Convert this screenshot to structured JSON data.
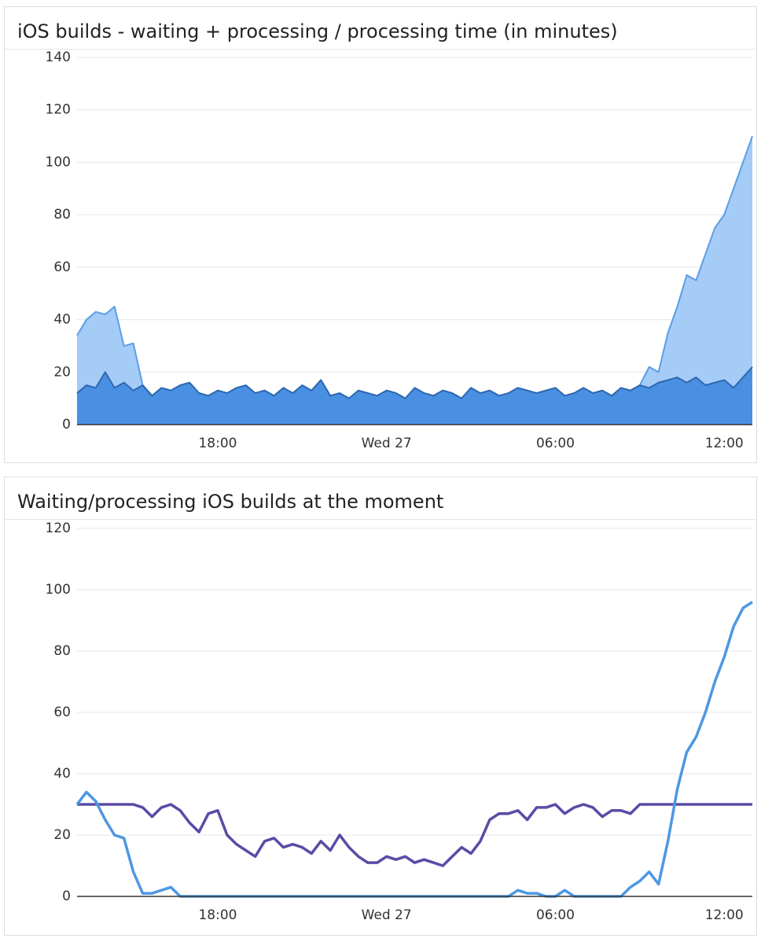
{
  "chart_data": [
    {
      "type": "area",
      "title": "iOS builds - waiting + processing / processing time (in minutes)",
      "categories": [
        null,
        null,
        null,
        null,
        null,
        null,
        null,
        null,
        null,
        null,
        null,
        null,
        null,
        null,
        null,
        "18:00",
        null,
        null,
        null,
        null,
        null,
        null,
        null,
        null,
        null,
        null,
        null,
        null,
        null,
        null,
        null,
        null,
        null,
        "Wed 27",
        null,
        null,
        null,
        null,
        null,
        null,
        null,
        null,
        null,
        null,
        null,
        null,
        null,
        null,
        null,
        null,
        null,
        "06:00",
        null,
        null,
        null,
        null,
        null,
        null,
        null,
        null,
        null,
        null,
        null,
        null,
        null,
        null,
        null,
        null,
        null,
        "12:00",
        null,
        null,
        null
      ],
      "ylim": [
        0,
        140
      ],
      "yticks": [
        0,
        20,
        40,
        60,
        80,
        100,
        120,
        140
      ],
      "grid": true,
      "series": [
        {
          "color": "#5b9ee6",
          "fill": "#a5cbf7",
          "values": [
            34,
            40,
            43,
            42,
            45,
            30,
            31,
            15,
            11,
            14,
            13,
            15,
            16,
            12,
            11,
            13,
            12,
            14,
            15,
            12,
            13,
            11,
            14,
            12,
            15,
            13,
            17,
            11,
            12,
            10,
            13,
            12,
            11,
            13,
            12,
            10,
            14,
            12,
            11,
            13,
            12,
            10,
            14,
            12,
            13,
            11,
            12,
            14,
            13,
            12,
            13,
            14,
            11,
            12,
            14,
            12,
            13,
            11,
            14,
            13,
            15,
            22,
            20,
            35,
            45,
            57,
            55,
            65,
            75,
            80,
            90,
            100,
            110
          ]
        },
        {
          "color": "#2d67b0",
          "fill": "#4a90e2",
          "values": [
            12,
            15,
            14,
            20,
            14,
            16,
            13,
            15,
            11,
            14,
            13,
            15,
            16,
            12,
            11,
            13,
            12,
            14,
            15,
            12,
            13,
            11,
            14,
            12,
            15,
            13,
            17,
            11,
            12,
            10,
            13,
            12,
            11,
            13,
            12,
            10,
            14,
            12,
            11,
            13,
            12,
            10,
            14,
            12,
            13,
            11,
            12,
            14,
            13,
            12,
            13,
            14,
            11,
            12,
            14,
            12,
            13,
            11,
            14,
            13,
            15,
            14,
            16,
            17,
            18,
            16,
            18,
            15,
            16,
            17,
            14,
            18,
            22
          ]
        }
      ]
    },
    {
      "type": "line",
      "title": "Waiting/processing iOS builds at the moment",
      "categories": [
        null,
        null,
        null,
        null,
        null,
        null,
        null,
        null,
        null,
        null,
        null,
        null,
        null,
        null,
        null,
        "18:00",
        null,
        null,
        null,
        null,
        null,
        null,
        null,
        null,
        null,
        null,
        null,
        null,
        null,
        null,
        null,
        null,
        null,
        "Wed 27",
        null,
        null,
        null,
        null,
        null,
        null,
        null,
        null,
        null,
        null,
        null,
        null,
        null,
        null,
        null,
        null,
        null,
        "06:00",
        null,
        null,
        null,
        null,
        null,
        null,
        null,
        null,
        null,
        null,
        null,
        null,
        null,
        null,
        null,
        null,
        null,
        "12:00",
        null,
        null,
        null
      ],
      "ylim": [
        0,
        120
      ],
      "yticks": [
        0,
        20,
        40,
        60,
        80,
        100,
        120
      ],
      "grid": true,
      "series": [
        {
          "color": "#5a4ba6",
          "values": [
            30,
            30,
            30,
            30,
            30,
            30,
            30,
            29,
            26,
            29,
            30,
            28,
            24,
            21,
            27,
            28,
            20,
            17,
            15,
            13,
            18,
            19,
            16,
            17,
            16,
            14,
            18,
            15,
            20,
            16,
            13,
            11,
            11,
            13,
            12,
            13,
            11,
            12,
            11,
            10,
            13,
            16,
            14,
            18,
            25,
            27,
            27,
            28,
            25,
            29,
            29,
            30,
            27,
            29,
            30,
            29,
            26,
            28,
            28,
            27,
            30,
            30,
            30,
            30,
            30,
            30,
            30,
            30,
            30,
            30,
            30,
            30,
            30
          ]
        },
        {
          "color": "#4d97e3",
          "values": [
            30,
            34,
            31,
            25,
            20,
            19,
            8,
            1,
            1,
            2,
            3,
            0,
            0,
            0,
            0,
            0,
            0,
            0,
            0,
            0,
            0,
            0,
            0,
            0,
            0,
            0,
            0,
            0,
            0,
            0,
            0,
            0,
            0,
            0,
            0,
            0,
            0,
            0,
            0,
            0,
            0,
            0,
            0,
            0,
            0,
            0,
            0,
            2,
            1,
            1,
            0,
            0,
            2,
            0,
            0,
            0,
            0,
            0,
            0,
            3,
            5,
            8,
            4,
            18,
            35,
            47,
            52,
            60,
            70,
            78,
            88,
            94,
            96
          ]
        }
      ]
    }
  ]
}
